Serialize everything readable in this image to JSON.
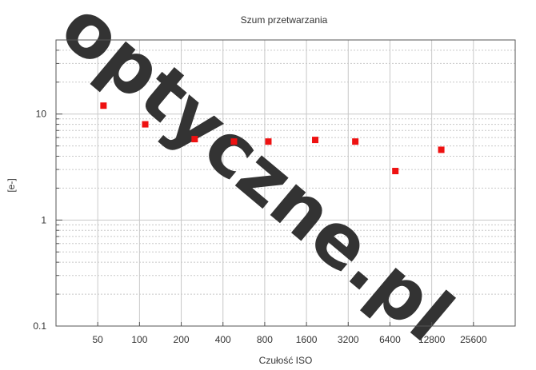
{
  "chart_data": {
    "type": "scatter",
    "title": "Szum przetwarzania",
    "xlabel": "Czułość ISO",
    "ylabel": "[e-]",
    "x_scale": "log2",
    "y_scale": "log10",
    "xlim": [
      25,
      51200
    ],
    "ylim": [
      0.1,
      50
    ],
    "x_ticks": [
      {
        "value": 50,
        "label": "50"
      },
      {
        "value": 100,
        "label": "100"
      },
      {
        "value": 200,
        "label": "200"
      },
      {
        "value": 400,
        "label": "400"
      },
      {
        "value": 800,
        "label": "800"
      },
      {
        "value": 1600,
        "label": "1600"
      },
      {
        "value": 3200,
        "label": "3200"
      },
      {
        "value": 6400,
        "label": "6400"
      },
      {
        "value": 12800,
        "label": "12800"
      },
      {
        "value": 25600,
        "label": "25600"
      }
    ],
    "y_ticks": [
      {
        "value": 0.1,
        "label": "0.1"
      },
      {
        "value": 1,
        "label": "1"
      },
      {
        "value": 10,
        "label": "10"
      }
    ],
    "grid": true,
    "marker_color": "#ee1111",
    "points": [
      {
        "x": 55,
        "y": 12.0
      },
      {
        "x": 110,
        "y": 8.0
      },
      {
        "x": 250,
        "y": 5.8
      },
      {
        "x": 480,
        "y": 5.5
      },
      {
        "x": 850,
        "y": 5.5
      },
      {
        "x": 1850,
        "y": 5.7
      },
      {
        "x": 3600,
        "y": 5.5
      },
      {
        "x": 7000,
        "y": 2.9
      },
      {
        "x": 15000,
        "y": 4.6
      }
    ]
  },
  "watermark": {
    "text": "optyczne.pl",
    "color": "#ffd4d4"
  }
}
